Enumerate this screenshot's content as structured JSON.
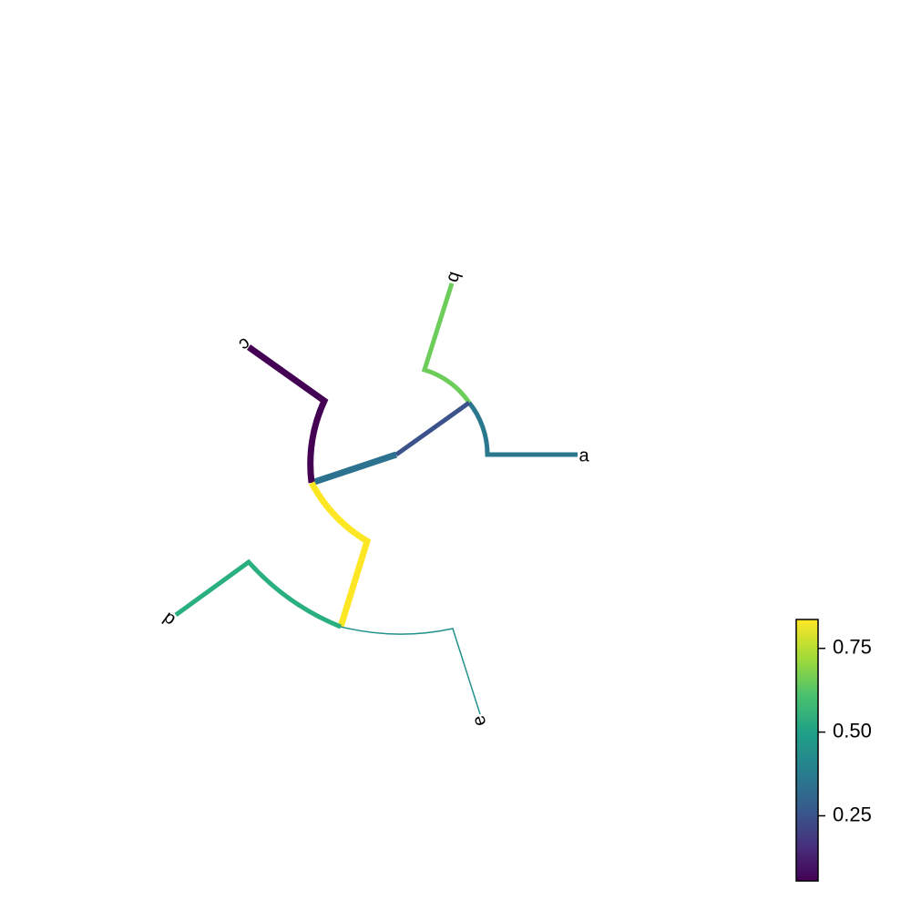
{
  "tree": {
    "tips": [
      "a",
      "b",
      "c",
      "d",
      "e"
    ]
  },
  "colorbar": {
    "colormap": "viridis",
    "ticks": [
      {
        "value": 0.25,
        "label": "0.25"
      },
      {
        "value": 0.5,
        "label": "0.50"
      },
      {
        "value": 0.75,
        "label": "0.75"
      }
    ]
  },
  "colors": {
    "c": "#440154",
    "a": "#2a788e",
    "internal_ab": "#3b528b",
    "b": "#6ccd5a",
    "internal_ab_stem": "#2c728e",
    "d": "#2ab07f",
    "e": "#21918c",
    "internal_de": "#fde725"
  }
}
